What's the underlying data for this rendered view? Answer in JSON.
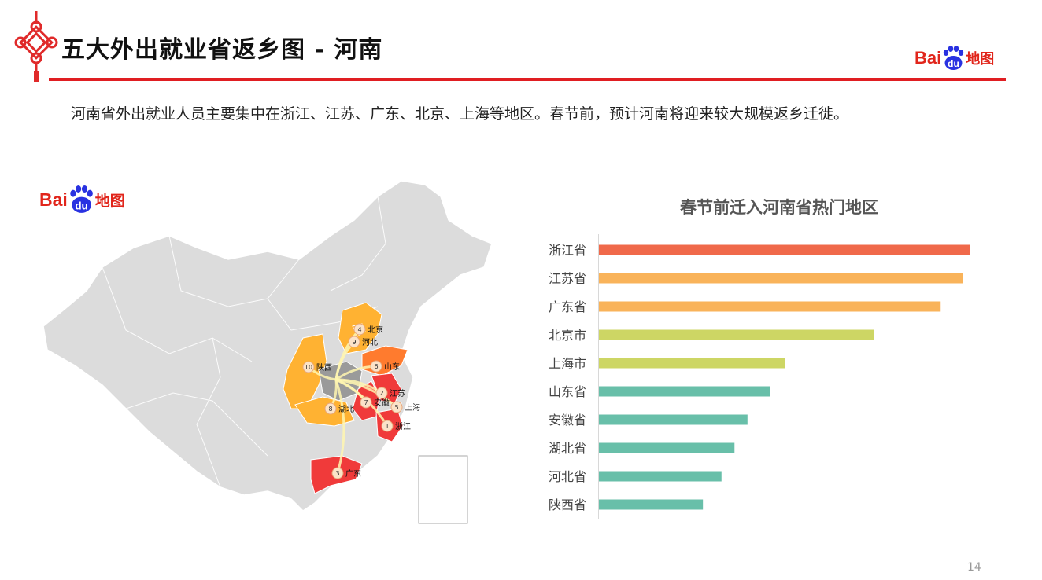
{
  "header": {
    "title": "五大外出就业省返乡图 - 河南",
    "logo_text": "Bai",
    "logo_paw_text": "du",
    "logo_suffix": "地图"
  },
  "description": "河南省外出就业人员主要集中在浙江、江苏、广东、北京、上海等地区。春节前，预计河南将迎来较大规模返乡迁徙。",
  "map": {
    "logo_text": "Bai",
    "logo_paw_text": "du",
    "logo_suffix": "地图",
    "origin": "河南",
    "markers": [
      {
        "rank": "1",
        "name": "浙江"
      },
      {
        "rank": "2",
        "name": "江苏"
      },
      {
        "rank": "3",
        "name": "广东"
      },
      {
        "rank": "4",
        "name": "北京"
      },
      {
        "rank": "5",
        "name": "上海"
      },
      {
        "rank": "6",
        "name": "山东"
      },
      {
        "rank": "7",
        "name": "安徽"
      },
      {
        "rank": "8",
        "name": "湖北"
      },
      {
        "rank": "9",
        "name": "河北"
      },
      {
        "rank": "10",
        "name": "陕西"
      }
    ],
    "colors": {
      "top": "#f03a3a",
      "high": "#ff7b2e",
      "mid": "#ffb232",
      "base": "#dcdcdc",
      "origin": "#9a9a9a"
    }
  },
  "chart_data": {
    "type": "bar",
    "orientation": "horizontal",
    "title": "春节前迁入河南省热门地区",
    "categories": [
      "浙江省",
      "江苏省",
      "广东省",
      "北京市",
      "上海市",
      "山东省",
      "安徽省",
      "湖北省",
      "河北省",
      "陕西省"
    ],
    "values": [
      100,
      98,
      92,
      74,
      50,
      46,
      40,
      36.5,
      33,
      28
    ],
    "xlim": [
      0,
      100
    ],
    "grid": false,
    "legend": "none",
    "colors": [
      "#f0694a",
      "#f9b35a",
      "#f9b35a",
      "#cdd664",
      "#cdd664",
      "#68bfa9",
      "#68bfa9",
      "#68bfa9",
      "#68bfa9",
      "#68bfa9"
    ]
  },
  "footer": {
    "page_number": "14"
  }
}
